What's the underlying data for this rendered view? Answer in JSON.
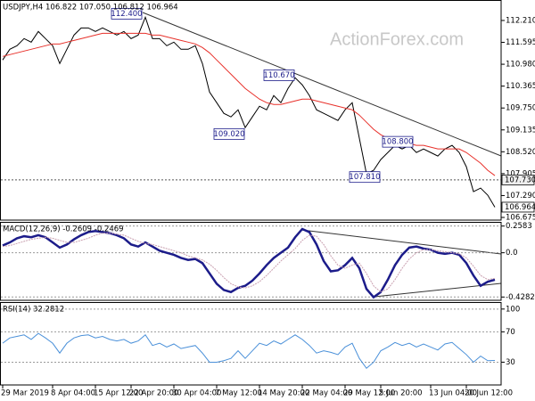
{
  "chart_data": [
    {
      "type": "line",
      "title": "USDJPY,H4 106.822 107.050 106.812 106.964",
      "watermark": "ActionForex.com",
      "categories": [
        "29 Mar 2019",
        null,
        null,
        null,
        null,
        null,
        null,
        "8 Apr 04:00",
        null,
        null,
        null,
        null,
        null,
        "15 Apr 12:00",
        null,
        null,
        null,
        null,
        "22 Apr 20:00",
        null,
        null,
        null,
        null,
        null,
        "30 Apr 04:00",
        null,
        null,
        null,
        null,
        null,
        "7 May 12:00",
        null,
        null,
        null,
        null,
        null,
        "14 May 20:00",
        null,
        null,
        null,
        null,
        null,
        "22 May 04:00",
        null,
        null,
        null,
        null,
        null,
        "29 May 12:00",
        null,
        null,
        null,
        null,
        "5 Jun 20:00",
        null,
        null,
        null,
        null,
        null,
        null,
        "13 Jun 04:00",
        null,
        null,
        null,
        null,
        "20 Jun 12:00",
        null,
        null,
        null,
        null
      ],
      "series": [
        {
          "color": "#000000",
          "values": [
            111.1,
            111.4,
            111.5,
            111.7,
            111.6,
            111.9,
            111.7,
            111.5,
            111.0,
            111.4,
            111.8,
            112.0,
            112.0,
            111.9,
            112.0,
            111.9,
            111.8,
            111.9,
            111.7,
            111.8,
            112.3,
            111.7,
            111.7,
            111.5,
            111.6,
            111.4,
            111.4,
            111.5,
            111.0,
            110.2,
            109.9,
            109.6,
            109.5,
            109.7,
            109.2,
            109.5,
            109.8,
            109.7,
            110.1,
            109.9,
            110.3,
            110.6,
            110.4,
            110.1,
            109.7,
            109.6,
            109.5,
            109.4,
            109.7,
            109.9,
            108.9,
            107.9,
            108.0,
            108.3,
            108.5,
            108.7,
            108.6,
            108.7,
            108.5,
            108.6,
            108.5,
            108.4,
            108.6,
            108.7,
            108.5,
            108.1,
            107.4,
            107.5,
            107.3,
            106.964
          ]
        },
        {
          "color": "#e8302a",
          "values": [
            111.2,
            111.25,
            111.3,
            111.35,
            111.4,
            111.45,
            111.5,
            111.55,
            111.55,
            111.6,
            111.65,
            111.7,
            111.75,
            111.8,
            111.85,
            111.85,
            111.85,
            111.85,
            111.85,
            111.85,
            111.85,
            111.8,
            111.8,
            111.75,
            111.7,
            111.65,
            111.6,
            111.55,
            111.45,
            111.3,
            111.1,
            110.9,
            110.7,
            110.5,
            110.3,
            110.15,
            110.0,
            109.9,
            109.85,
            109.85,
            109.9,
            109.95,
            110.0,
            110.0,
            109.95,
            109.9,
            109.85,
            109.8,
            109.75,
            109.7,
            109.55,
            109.35,
            109.15,
            109.0,
            108.9,
            108.85,
            108.8,
            108.75,
            108.7,
            108.7,
            108.65,
            108.6,
            108.6,
            108.6,
            108.6,
            108.5,
            108.35,
            108.2,
            108.0,
            107.85
          ]
        }
      ],
      "ylim": [
        106.6,
        112.76
      ],
      "yticks": [
        {
          "value": 112.21,
          "label": "112.210"
        },
        {
          "value": 111.595,
          "label": "111.595"
        },
        {
          "value": 110.98,
          "label": "110.980"
        },
        {
          "value": 110.365,
          "label": "110.365"
        },
        {
          "value": 109.75,
          "label": "109.750"
        },
        {
          "value": 109.135,
          "label": "109.135"
        },
        {
          "value": 108.52,
          "label": "108.520"
        },
        {
          "value": 107.905,
          "label": "107.905"
        },
        {
          "value": 107.29,
          "label": "107.290"
        },
        {
          "value": 106.675,
          "label": "106.675"
        }
      ],
      "annotations": [
        {
          "value": 112.4,
          "label": "112.400"
        },
        {
          "value": 110.67,
          "label": "110.670"
        },
        {
          "value": 109.02,
          "label": "109.020"
        },
        {
          "value": 108.8,
          "label": "108.800"
        },
        {
          "value": 107.81,
          "label": "107.810"
        }
      ],
      "hlines": [
        {
          "value": 107.73,
          "label": "107.730"
        },
        {
          "value": 106.964,
          "label": "106.964"
        }
      ]
    },
    {
      "type": "line",
      "title": "MACD(12,26,9) -0.2609 -0.2469",
      "series": [
        {
          "color": "#1c1c8a",
          "values": [
            0.07,
            0.1,
            0.14,
            0.16,
            0.15,
            0.17,
            0.15,
            0.1,
            0.05,
            0.08,
            0.13,
            0.17,
            0.2,
            0.21,
            0.2,
            0.19,
            0.17,
            0.14,
            0.08,
            0.06,
            0.1,
            0.06,
            0.02,
            0.0,
            -0.02,
            -0.05,
            -0.07,
            -0.06,
            -0.1,
            -0.2,
            -0.3,
            -0.36,
            -0.38,
            -0.34,
            -0.32,
            -0.27,
            -0.2,
            -0.12,
            -0.05,
            0.0,
            0.05,
            0.15,
            0.23,
            0.2,
            0.08,
            -0.08,
            -0.18,
            -0.17,
            -0.12,
            -0.05,
            -0.15,
            -0.35,
            -0.43,
            -0.38,
            -0.26,
            -0.12,
            -0.02,
            0.05,
            0.06,
            0.04,
            0.03,
            0.0,
            -0.01,
            0.0,
            -0.02,
            -0.1,
            -0.22,
            -0.32,
            -0.28,
            -0.2609
          ]
        },
        {
          "color": "#c9a0b0",
          "values": [
            0.06,
            0.07,
            0.09,
            0.11,
            0.13,
            0.14,
            0.15,
            0.14,
            0.12,
            0.1,
            0.1,
            0.12,
            0.14,
            0.17,
            0.19,
            0.19,
            0.18,
            0.17,
            0.14,
            0.11,
            0.09,
            0.08,
            0.06,
            0.04,
            0.02,
            0.0,
            -0.03,
            -0.05,
            -0.07,
            -0.11,
            -0.17,
            -0.24,
            -0.3,
            -0.33,
            -0.34,
            -0.32,
            -0.28,
            -0.22,
            -0.15,
            -0.08,
            -0.02,
            0.04,
            0.12,
            0.17,
            0.16,
            0.08,
            -0.03,
            -0.12,
            -0.15,
            -0.12,
            -0.1,
            -0.2,
            -0.32,
            -0.38,
            -0.35,
            -0.26,
            -0.15,
            -0.06,
            0.0,
            0.03,
            0.03,
            0.02,
            0.01,
            0.0,
            -0.01,
            -0.05,
            -0.13,
            -0.22,
            -0.26,
            -0.2469
          ]
        }
      ],
      "ylim": [
        -0.46,
        0.29
      ],
      "yticks": [
        0.2583,
        {
          "value": 0,
          "label": "0.0"
        },
        -0.4282
      ],
      "grid": true
    },
    {
      "type": "line",
      "title": "RSI(14) 32.2812",
      "series": [
        {
          "color": "#4a90d9",
          "values": [
            55,
            62,
            64,
            66,
            60,
            68,
            62,
            55,
            42,
            55,
            62,
            65,
            66,
            62,
            64,
            60,
            58,
            60,
            55,
            58,
            66,
            52,
            55,
            50,
            54,
            48,
            50,
            52,
            42,
            30,
            30,
            32,
            35,
            45,
            35,
            45,
            55,
            52,
            58,
            54,
            60,
            66,
            60,
            52,
            42,
            45,
            43,
            40,
            50,
            55,
            35,
            22,
            30,
            45,
            50,
            56,
            52,
            55,
            50,
            54,
            50,
            46,
            54,
            56,
            48,
            40,
            30,
            38,
            32,
            32.2812
          ]
        }
      ],
      "ylim": [
        0,
        108
      ],
      "yticks": [
        100,
        70,
        30
      ],
      "grid": true
    }
  ]
}
